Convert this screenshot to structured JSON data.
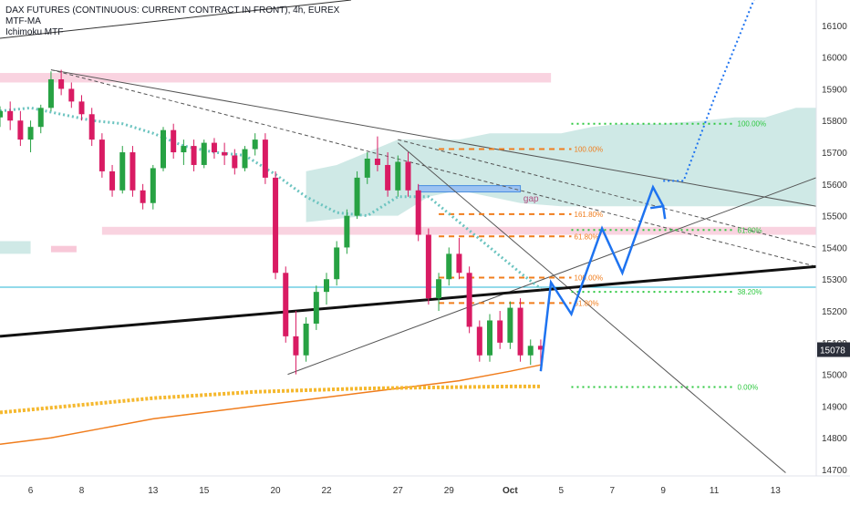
{
  "legend": {
    "title": "DAX FUTURES (CONTINUOUS: CURRENT CONTRACT IN FRONT), 4h, EUREX",
    "line2": "MTF-MA",
    "line3": "Ichimoku MTF"
  },
  "chart_data": {
    "type": "candlestick",
    "title": "DAX FUTURES (CONTINUOUS: CURRENT CONTRACT IN FRONT), 4h, EUREX",
    "y_ticks": [
      16100,
      16000,
      15900,
      15800,
      15700,
      15600,
      15500,
      15400,
      15300,
      15200,
      15100,
      15000,
      14900,
      14800,
      14700
    ],
    "ylim": [
      14680,
      16180
    ],
    "x_ticks": [
      "6",
      "8",
      "13",
      "15",
      "20",
      "22",
      "27",
      "29",
      "Oct",
      "5",
      "7",
      "9",
      "11",
      "13"
    ],
    "x_tick_values": [
      8,
      13,
      20,
      25,
      32,
      37,
      44,
      49,
      55,
      60,
      65,
      70,
      75,
      81
    ],
    "xlim": [
      5,
      85
    ],
    "last_price": "15078",
    "last_price_value": 15078,
    "annotations": {
      "gap": "gap"
    },
    "fib_upper": {
      "x_range": [
        48,
        61
      ],
      "levels": [
        {
          "label": "100.00%",
          "price": 15710
        },
        {
          "label": "161.80%",
          "price": 15505
        },
        {
          "label": "61.80%",
          "price": 15435
        },
        {
          "label": "100.00%",
          "price": 15305
        },
        {
          "label": "61.80%",
          "price": 15225
        }
      ]
    },
    "fib_lower": {
      "x_range": [
        61,
        77
      ],
      "levels": [
        {
          "label": "100.00%",
          "price": 15790
        },
        {
          "label": "61.80%",
          "price": 15455
        },
        {
          "label": "38.20%",
          "price": 15260
        },
        {
          "label": "0.00%",
          "price": 14960
        }
      ]
    },
    "series": [
      {
        "name": "candles",
        "ohlc": [
          [
            5.0,
            15810,
            15845,
            15780,
            15830
          ],
          [
            6.0,
            15830,
            15860,
            15770,
            15800
          ],
          [
            7.0,
            15800,
            15830,
            15720,
            15740
          ],
          [
            8.0,
            15740,
            15800,
            15700,
            15780
          ],
          [
            9.0,
            15780,
            15850,
            15760,
            15840
          ],
          [
            10.0,
            15840,
            15955,
            15830,
            15930
          ],
          [
            11.0,
            15930,
            15960,
            15880,
            15900
          ],
          [
            12.0,
            15900,
            15920,
            15840,
            15860
          ],
          [
            13.0,
            15860,
            15880,
            15800,
            15820
          ],
          [
            14.0,
            15820,
            15840,
            15720,
            15740
          ],
          [
            15.0,
            15740,
            15760,
            15620,
            15640
          ],
          [
            16.0,
            15640,
            15660,
            15560,
            15580
          ],
          [
            17.0,
            15580,
            15720,
            15570,
            15700
          ],
          [
            18.0,
            15700,
            15720,
            15560,
            15580
          ],
          [
            19.0,
            15580,
            15600,
            15520,
            15540
          ],
          [
            20.0,
            15540,
            15660,
            15520,
            15650
          ],
          [
            21.0,
            15650,
            15780,
            15640,
            15770
          ],
          [
            22.0,
            15770,
            15790,
            15680,
            15700
          ],
          [
            23.0,
            15700,
            15740,
            15660,
            15720
          ],
          [
            24.0,
            15720,
            15740,
            15640,
            15660
          ],
          [
            25.0,
            15660,
            15740,
            15650,
            15730
          ],
          [
            26.0,
            15730,
            15745,
            15680,
            15700
          ],
          [
            27.0,
            15700,
            15730,
            15660,
            15690
          ],
          [
            28.0,
            15690,
            15710,
            15630,
            15650
          ],
          [
            29.0,
            15650,
            15720,
            15640,
            15710
          ],
          [
            30.0,
            15710,
            15760,
            15690,
            15740
          ],
          [
            31.0,
            15740,
            15760,
            15600,
            15620
          ],
          [
            32.0,
            15620,
            15640,
            15300,
            15320
          ],
          [
            33.0,
            15320,
            15340,
            15100,
            15120
          ],
          [
            34.0,
            15120,
            15200,
            15000,
            15060
          ],
          [
            35.0,
            15060,
            15180,
            15040,
            15160
          ],
          [
            36.0,
            15160,
            15280,
            15140,
            15260
          ],
          [
            37.0,
            15260,
            15320,
            15220,
            15300
          ],
          [
            38.0,
            15300,
            15420,
            15280,
            15400
          ],
          [
            39.0,
            15400,
            15520,
            15380,
            15500
          ],
          [
            40.0,
            15500,
            15640,
            15490,
            15620
          ],
          [
            41.0,
            15620,
            15700,
            15600,
            15680
          ],
          [
            42.0,
            15680,
            15750,
            15640,
            15660
          ],
          [
            43.0,
            15660,
            15700,
            15560,
            15580
          ],
          [
            44.0,
            15580,
            15690,
            15560,
            15670
          ],
          [
            45.0,
            15670,
            15700,
            15560,
            15580
          ],
          [
            46.0,
            15580,
            15600,
            15420,
            15440
          ],
          [
            47.0,
            15440,
            15460,
            15220,
            15240
          ],
          [
            48.0,
            15240,
            15320,
            15200,
            15300
          ],
          [
            49.0,
            15300,
            15400,
            15280,
            15380
          ],
          [
            50.0,
            15380,
            15430,
            15300,
            15320
          ],
          [
            51.0,
            15320,
            15340,
            15130,
            15150
          ],
          [
            52.0,
            15150,
            15170,
            15040,
            15060
          ],
          [
            53.0,
            15060,
            15190,
            15040,
            15170
          ],
          [
            54.0,
            15170,
            15200,
            15080,
            15100
          ],
          [
            55.0,
            15100,
            15230,
            15080,
            15210
          ],
          [
            56.0,
            15210,
            15240,
            15040,
            15060
          ],
          [
            57.0,
            15060,
            15110,
            15030,
            15090
          ],
          [
            58.0,
            15090,
            15110,
            15020,
            15078
          ]
        ]
      },
      {
        "name": "MTF-MA",
        "points": [
          [
            5,
            15830
          ],
          [
            8,
            15840
          ],
          [
            11,
            15820
          ],
          [
            14,
            15800
          ],
          [
            17,
            15790
          ],
          [
            20,
            15760
          ],
          [
            23,
            15720
          ],
          [
            26,
            15700
          ],
          [
            29,
            15690
          ],
          [
            32,
            15630
          ],
          [
            35,
            15560
          ],
          [
            38,
            15510
          ],
          [
            41,
            15500
          ],
          [
            44,
            15560
          ],
          [
            47,
            15560
          ],
          [
            50,
            15480
          ],
          [
            53,
            15400
          ],
          [
            56,
            15320
          ],
          [
            58,
            15270
          ]
        ]
      },
      {
        "name": "orange-ma",
        "points": [
          [
            5,
            14780
          ],
          [
            10,
            14800
          ],
          [
            15,
            14830
          ],
          [
            20,
            14860
          ],
          [
            25,
            14880
          ],
          [
            30,
            14900
          ],
          [
            35,
            14920
          ],
          [
            40,
            14940
          ],
          [
            45,
            14960
          ],
          [
            50,
            14980
          ],
          [
            55,
            15010
          ],
          [
            58,
            15030
          ]
        ]
      },
      {
        "name": "yellow-ma",
        "points": [
          [
            5,
            14880
          ],
          [
            10,
            14895
          ],
          [
            15,
            14910
          ],
          [
            20,
            14925
          ],
          [
            25,
            14935
          ],
          [
            30,
            14945
          ],
          [
            35,
            14950
          ],
          [
            40,
            14955
          ],
          [
            45,
            14958
          ],
          [
            50,
            14960
          ],
          [
            55,
            14962
          ],
          [
            58,
            14962
          ]
        ]
      },
      {
        "name": "blue-projection",
        "points": [
          [
            58,
            15010
          ],
          [
            59,
            15290
          ],
          [
            61,
            15190
          ],
          [
            64,
            15460
          ],
          [
            66,
            15320
          ],
          [
            69,
            15590
          ],
          [
            70,
            15530
          ]
        ]
      },
      {
        "name": "dotted-projection",
        "points": [
          [
            70,
            15610
          ],
          [
            72,
            15610
          ],
          [
            75,
            15870
          ],
          [
            79,
            16190
          ]
        ]
      }
    ]
  }
}
